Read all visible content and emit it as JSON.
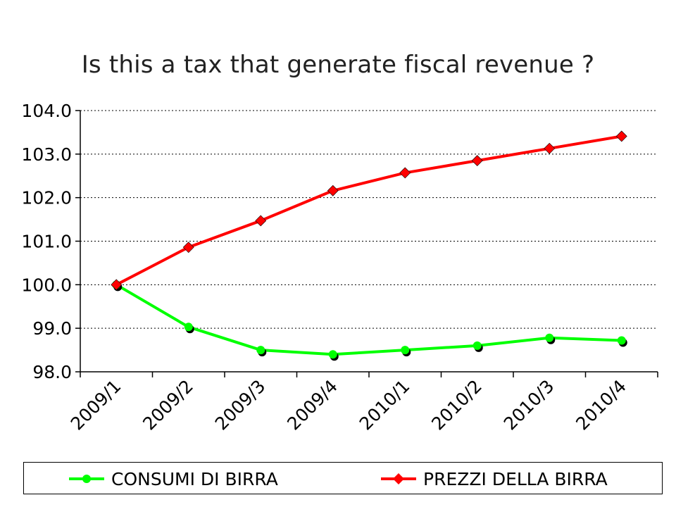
{
  "chart_data": {
    "type": "line",
    "title": "Is this a tax that generate fiscal revenue ?",
    "categories": [
      "2009/1",
      "2009/2",
      "2009/3",
      "2009/4",
      "2010/1",
      "2010/2",
      "2010/3",
      "2010/4"
    ],
    "ylim": [
      98.0,
      104.0
    ],
    "yticks": [
      "98.0",
      "99.0",
      "100.0",
      "101.0",
      "102.0",
      "103.0",
      "104.0"
    ],
    "grid": "horizontal dotted",
    "legend_position": "bottom",
    "series": [
      {
        "name": "CONSUMI DI BIRRA",
        "color": "#00ff00",
        "marker": "circle",
        "values": [
          100.0,
          99.03,
          98.5,
          98.4,
          98.5,
          98.6,
          98.78,
          98.72
        ]
      },
      {
        "name": "PREZZI DELLA BIRRA",
        "color": "#ff0000",
        "marker": "diamond",
        "values": [
          100.0,
          100.86,
          101.47,
          102.16,
          102.57,
          102.85,
          103.13,
          103.41
        ]
      }
    ]
  }
}
